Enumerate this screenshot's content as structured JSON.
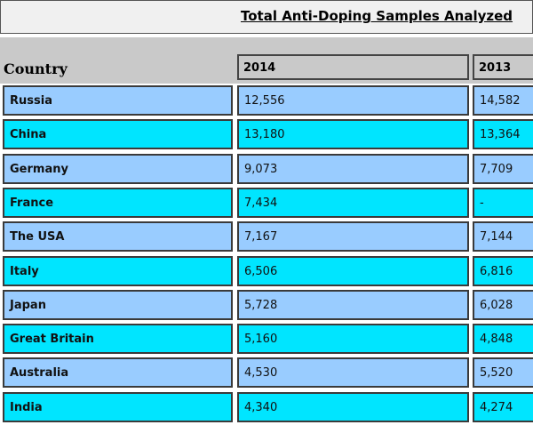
{
  "title": "Total Anti-Doping Samples Analyzed",
  "headers": {
    "country": "Country",
    "y2014": "2014",
    "y2013": "2013"
  },
  "colors": {
    "row_blue": "#99ccff",
    "row_cyan": "#00e5ff",
    "header": "#c9c9c9"
  },
  "rows": [
    {
      "country": "Russia",
      "y2014": "12,556",
      "y2013": "14,582"
    },
    {
      "country": "China",
      "y2014": "13,180",
      "y2013": "13,364"
    },
    {
      "country": "Germany",
      "y2014": "9,073",
      "y2013": "7,709"
    },
    {
      "country": "France",
      "y2014": "7,434",
      "y2013": "-"
    },
    {
      "country": "The USA",
      "y2014": "7,167",
      "y2013": "7,144"
    },
    {
      "country": "Italy",
      "y2014": "6,506",
      "y2013": "6,816"
    },
    {
      "country": "Japan",
      "y2014": "5,728",
      "y2013": "6,028"
    },
    {
      "country": "Great Britain",
      "y2014": "5,160",
      "y2013": "4,848"
    },
    {
      "country": "Australia",
      "y2014": "4,530",
      "y2013": "5,520"
    },
    {
      "country": "India",
      "y2014": "4,340",
      "y2013": "4,274"
    }
  ]
}
